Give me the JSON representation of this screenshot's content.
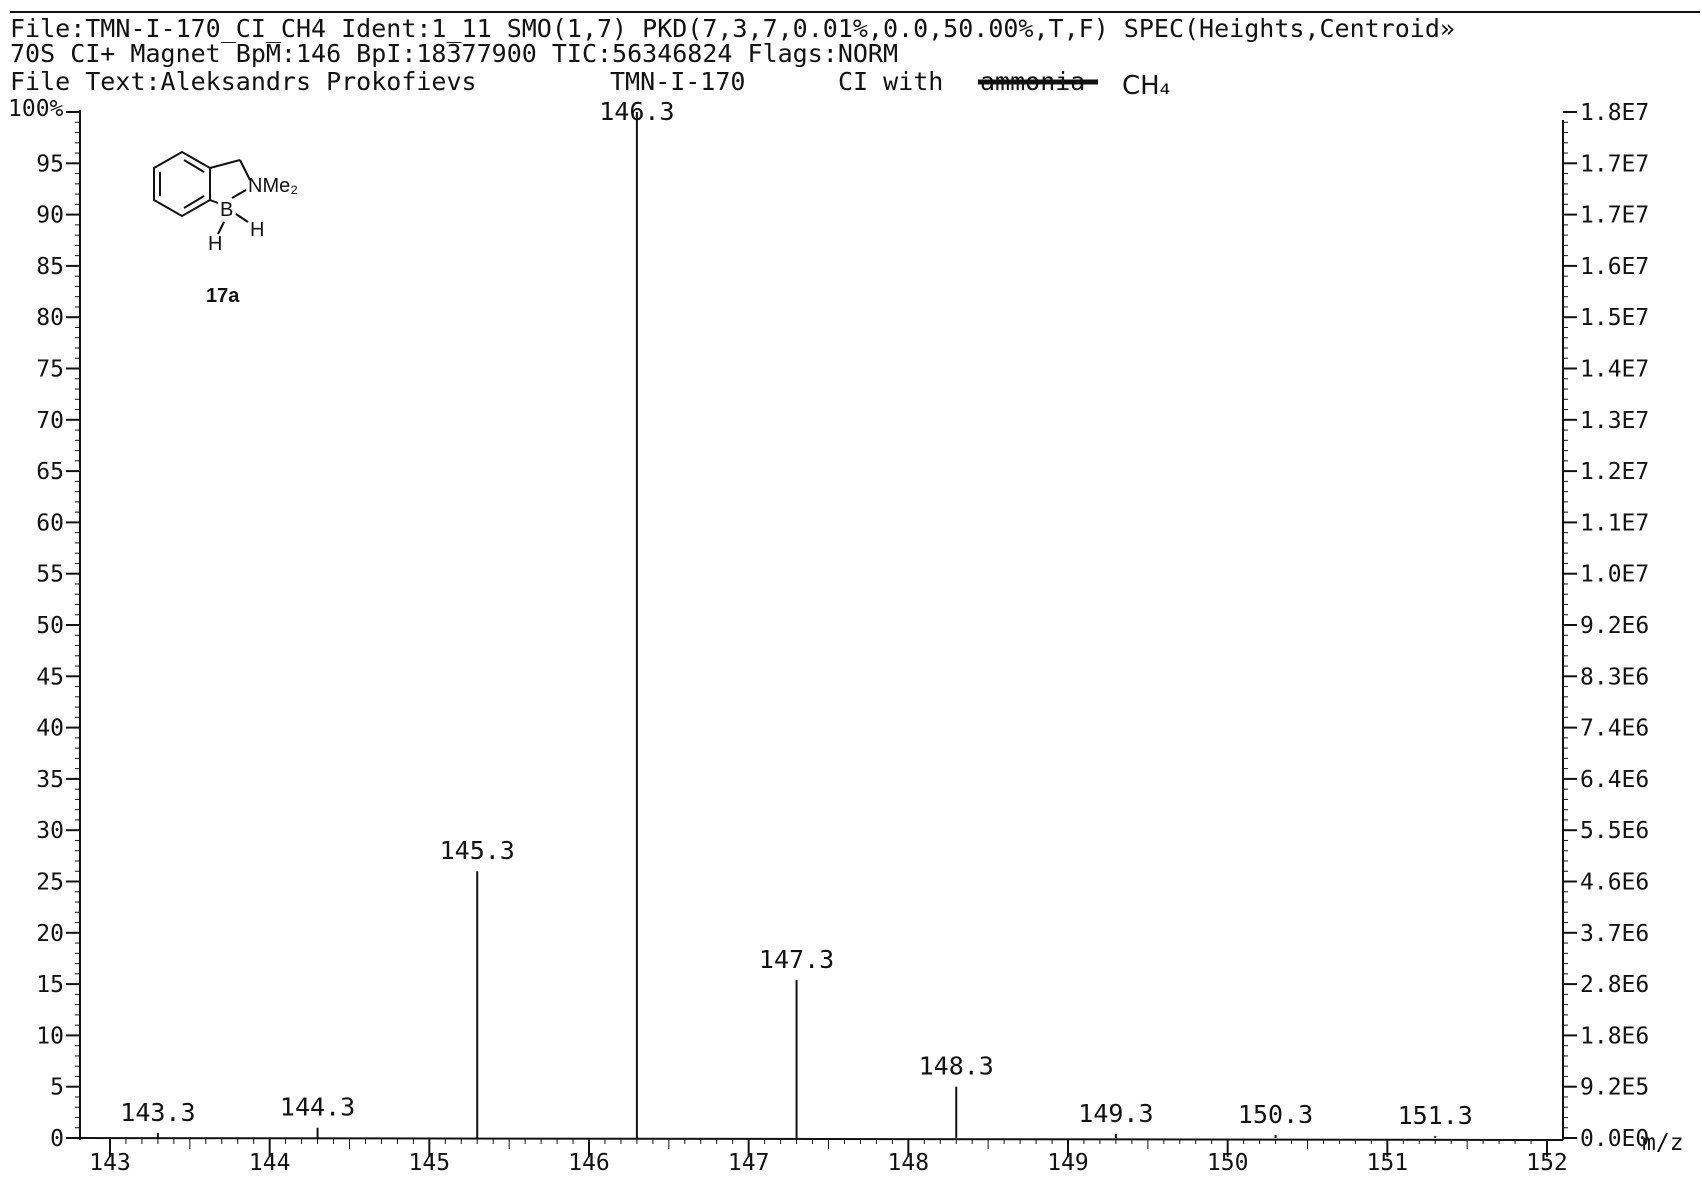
{
  "header": {
    "line1": "File:TMN-I-170_CI_CH4 Ident:1_11 SMO(1,7) PKD(7,3,7,0.01%,0.0,50.00%,T,F) SPEC(Heights,Centroid»",
    "line2": "70S CI+ Magnet BpM:146 BpI:18377900 TIC:56346824 Flags:NORM",
    "line3_prefix": "File Text:Aleksandrs Prokofievs",
    "line3_sample": "TMN-I-170",
    "line3_ci": "CI with",
    "line3_struck": "ammonia",
    "line3_handwritten": "CH₄"
  },
  "molecule": {
    "substituent": "NMe₂",
    "boron": "B",
    "h1": "H",
    "h2": "H",
    "compound_label": "17a"
  },
  "chart_data": {
    "type": "bar",
    "xlabel": "m/z",
    "ylabel_left_top": "100%",
    "xlim": [
      143,
      152
    ],
    "ylim": [
      0,
      100
    ],
    "x_ticks": [
      "143",
      "144",
      "145",
      "146",
      "147",
      "148",
      "149",
      "150",
      "151",
      "152"
    ],
    "y_ticks_left": [
      "0",
      "5",
      "10",
      "15",
      "20",
      "25",
      "30",
      "35",
      "40",
      "45",
      "50",
      "55",
      "60",
      "65",
      "70",
      "75",
      "80",
      "85",
      "90",
      "95"
    ],
    "y_ticks_right": [
      "0.0E0",
      "9.2E5",
      "1.8E6",
      "2.8E6",
      "3.7E6",
      "4.6E6",
      "5.5E6",
      "6.4E6",
      "7.4E6",
      "8.3E6",
      "9.2E6",
      "1.0E7",
      "1.1E7",
      "1.2E7",
      "1.3E7",
      "1.4E7",
      "1.5E7",
      "1.6E7",
      "1.7E7",
      "1.7E7",
      "1.8E7"
    ],
    "peaks": [
      {
        "mz": 143.3,
        "label": "143.3",
        "intensity": 0.5
      },
      {
        "mz": 144.3,
        "label": "144.3",
        "intensity": 1.0
      },
      {
        "mz": 145.3,
        "label": "145.3",
        "intensity": 26.0
      },
      {
        "mz": 146.3,
        "label": "146.3",
        "intensity": 100.0
      },
      {
        "mz": 147.3,
        "label": "147.3",
        "intensity": 15.4
      },
      {
        "mz": 148.3,
        "label": "148.3",
        "intensity": 5.0
      },
      {
        "mz": 149.3,
        "label": "149.3",
        "intensity": 0.4
      },
      {
        "mz": 150.3,
        "label": "150.3",
        "intensity": 0.3
      },
      {
        "mz": 151.3,
        "label": "151.3",
        "intensity": 0.2
      }
    ]
  }
}
